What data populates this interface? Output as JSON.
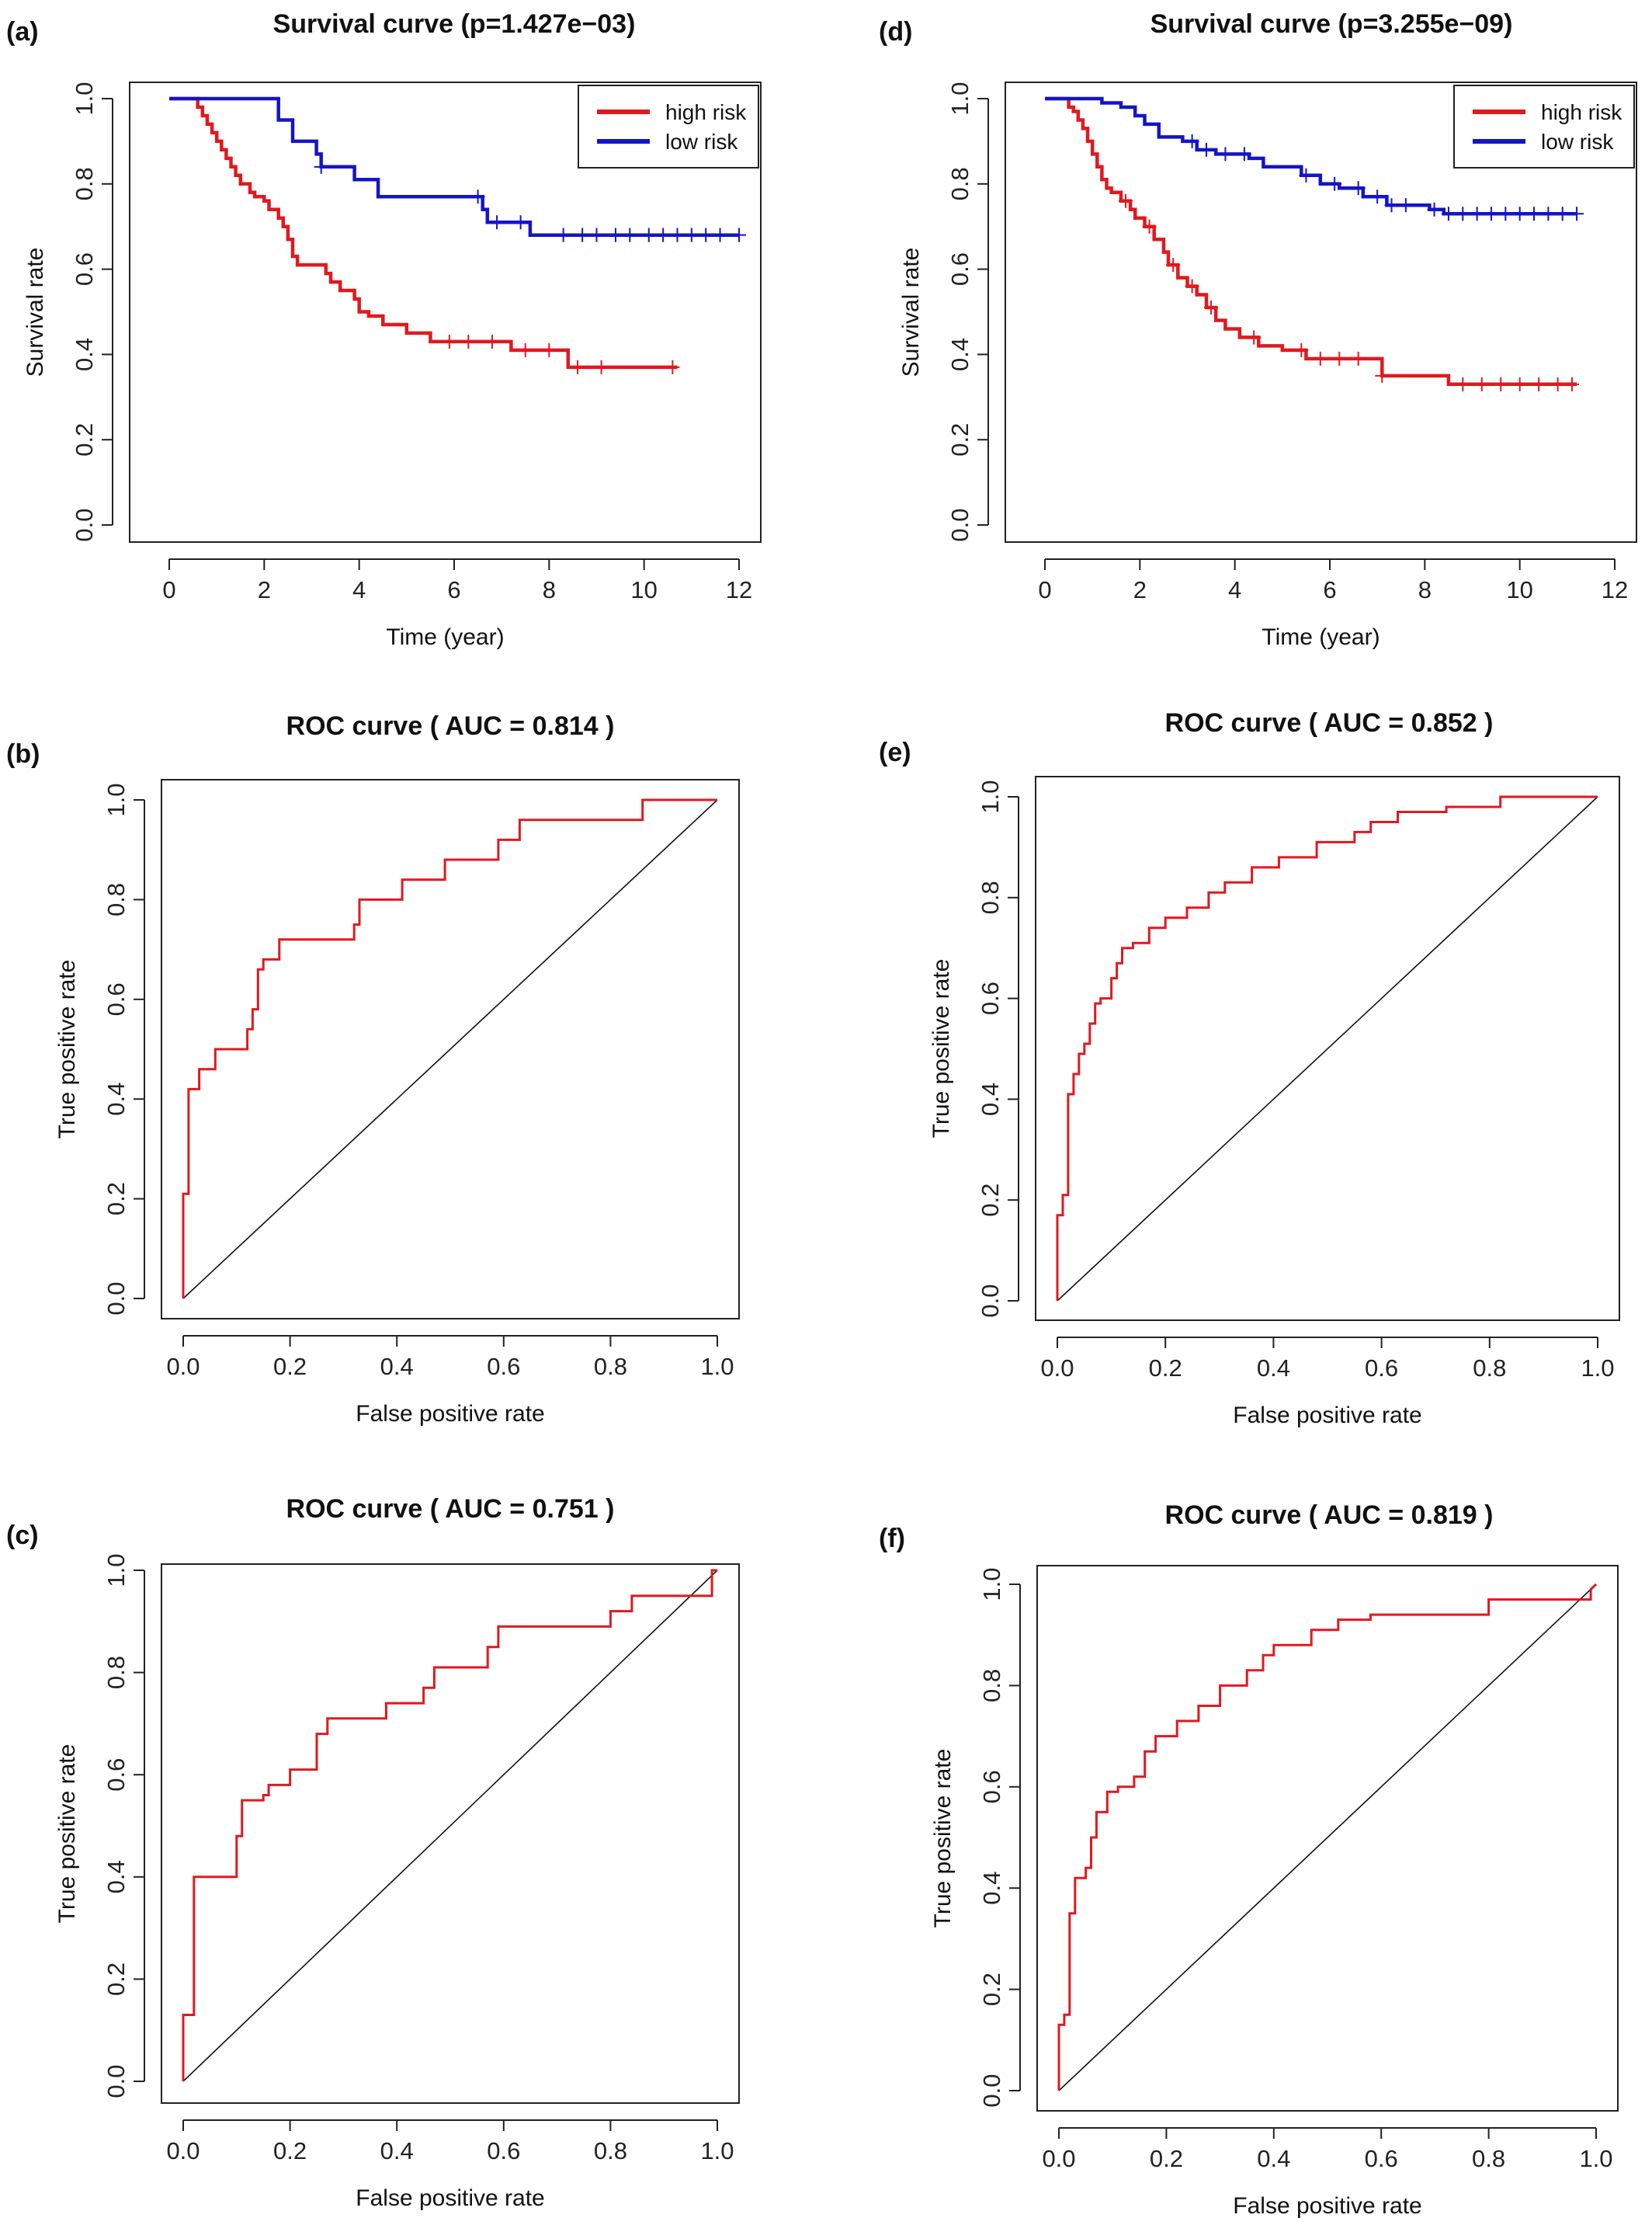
{
  "colors": {
    "high_risk": "#e0191f",
    "low_risk": "#1414c8",
    "axis": "#222222",
    "diagonal": "#111111"
  },
  "chart_data": [
    {
      "panel": "(a)",
      "type": "line",
      "title": "Survival curve (p=1.427e−03)",
      "xlabel": "Time (year)",
      "ylabel": "Survival rate",
      "xlim": [
        0,
        12
      ],
      "ylim": [
        0,
        1
      ],
      "x_ticks": [
        "0",
        "2",
        "4",
        "6",
        "8",
        "10",
        "12"
      ],
      "y_ticks": [
        "0.0",
        "0.2",
        "0.4",
        "0.6",
        "0.8",
        "1.0"
      ],
      "step": true,
      "legend": {
        "position": "top-right"
      },
      "series": [
        {
          "name": "high risk",
          "color": "#e0191f",
          "x": [
            0,
            0.6,
            0.7,
            0.8,
            0.9,
            1.0,
            1.1,
            1.2,
            1.3,
            1.4,
            1.5,
            1.7,
            1.8,
            2.0,
            2.1,
            2.3,
            2.4,
            2.5,
            2.6,
            2.7,
            3.3,
            3.4,
            3.6,
            3.9,
            4.0,
            4.2,
            4.5,
            5.0,
            5.5,
            7.2,
            8.4,
            10.7
          ],
          "y": [
            1.0,
            0.98,
            0.96,
            0.94,
            0.92,
            0.9,
            0.88,
            0.86,
            0.84,
            0.82,
            0.8,
            0.78,
            0.77,
            0.76,
            0.74,
            0.72,
            0.7,
            0.67,
            0.63,
            0.61,
            0.59,
            0.57,
            0.55,
            0.53,
            0.5,
            0.49,
            0.47,
            0.45,
            0.43,
            0.41,
            0.37,
            0.37
          ],
          "censored_x": [
            5.9,
            6.3,
            6.8,
            7.5,
            8.0,
            8.6,
            9.1,
            10.6
          ]
        },
        {
          "name": "low risk",
          "color": "#1414c8",
          "x": [
            0,
            2.3,
            2.6,
            3.1,
            3.2,
            3.9,
            4.4,
            6.6,
            6.7,
            7.0,
            7.6,
            12.0
          ],
          "y": [
            1.0,
            0.95,
            0.9,
            0.87,
            0.84,
            0.81,
            0.77,
            0.74,
            0.71,
            0.71,
            0.68,
            0.68
          ],
          "censored_x": [
            3.2,
            6.5,
            6.9,
            7.4,
            8.3,
            8.7,
            9.0,
            9.4,
            9.7,
            10.1,
            10.4,
            10.7,
            11.0,
            11.3,
            11.6,
            12.0
          ]
        }
      ]
    },
    {
      "panel": "(b)",
      "type": "line",
      "title": "ROC curve ( AUC =  0.814 )",
      "xlabel": "False positive rate",
      "ylabel": "True positive rate",
      "xlim": [
        0,
        1
      ],
      "ylim": [
        0,
        1
      ],
      "x_ticks": [
        "0.0",
        "0.2",
        "0.4",
        "0.6",
        "0.8",
        "1.0"
      ],
      "y_ticks": [
        "0.0",
        "0.2",
        "0.4",
        "0.6",
        "0.8",
        "1.0"
      ],
      "step": true,
      "series": [
        {
          "color": "#e0191f",
          "x": [
            0,
            0,
            0.01,
            0.01,
            0.03,
            0.03,
            0.06,
            0.06,
            0.12,
            0.12,
            0.13,
            0.13,
            0.14,
            0.14,
            0.15,
            0.15,
            0.18,
            0.18,
            0.32,
            0.32,
            0.33,
            0.33,
            0.41,
            0.41,
            0.49,
            0.49,
            0.59,
            0.59,
            0.63,
            0.63,
            0.86,
            0.86,
            1.0
          ],
          "y": [
            0,
            0.21,
            0.21,
            0.42,
            0.42,
            0.46,
            0.46,
            0.5,
            0.5,
            0.54,
            0.54,
            0.58,
            0.58,
            0.66,
            0.66,
            0.68,
            0.68,
            0.72,
            0.72,
            0.75,
            0.75,
            0.8,
            0.8,
            0.84,
            0.84,
            0.88,
            0.88,
            0.92,
            0.92,
            0.96,
            0.96,
            1.0,
            1.0
          ]
        }
      ]
    },
    {
      "panel": "(c)",
      "type": "line",
      "title": "ROC curve ( AUC =  0.751 )",
      "xlabel": "False positive rate",
      "ylabel": "True positive rate",
      "xlim": [
        0,
        1
      ],
      "ylim": [
        0,
        1
      ],
      "x_ticks": [
        "0.0",
        "0.2",
        "0.4",
        "0.6",
        "0.8",
        "1.0"
      ],
      "y_ticks": [
        "0.0",
        "0.2",
        "0.4",
        "0.6",
        "0.8",
        "1.0"
      ],
      "step": true,
      "series": [
        {
          "color": "#e0191f",
          "x": [
            0,
            0,
            0.02,
            0.02,
            0.1,
            0.1,
            0.11,
            0.11,
            0.15,
            0.15,
            0.16,
            0.16,
            0.2,
            0.2,
            0.25,
            0.25,
            0.27,
            0.27,
            0.3,
            0.3,
            0.38,
            0.38,
            0.45,
            0.45,
            0.47,
            0.47,
            0.57,
            0.57,
            0.59,
            0.59,
            0.8,
            0.8,
            0.84,
            0.84,
            0.99,
            0.99,
            1.0
          ],
          "y": [
            0,
            0.13,
            0.13,
            0.4,
            0.4,
            0.48,
            0.48,
            0.55,
            0.55,
            0.56,
            0.56,
            0.58,
            0.58,
            0.61,
            0.61,
            0.68,
            0.68,
            0.71,
            0.71,
            0.71,
            0.71,
            0.74,
            0.74,
            0.77,
            0.77,
            0.81,
            0.81,
            0.85,
            0.85,
            0.89,
            0.89,
            0.92,
            0.92,
            0.95,
            0.95,
            1.0,
            1.0
          ]
        }
      ]
    },
    {
      "panel": "(d)",
      "type": "line",
      "title": "Survival curve (p=3.255e−09)",
      "xlabel": "Time (year)",
      "ylabel": "Survival rate",
      "xlim": [
        0,
        12
      ],
      "ylim": [
        0,
        1
      ],
      "x_ticks": [
        "0",
        "2",
        "4",
        "6",
        "8",
        "10",
        "12"
      ],
      "y_ticks": [
        "0.0",
        "0.2",
        "0.4",
        "0.6",
        "0.8",
        "1.0"
      ],
      "step": true,
      "legend": {
        "position": "top-right"
      },
      "series": [
        {
          "name": "high risk",
          "color": "#e0191f",
          "x": [
            0,
            0.5,
            0.6,
            0.7,
            0.8,
            0.9,
            1.0,
            1.1,
            1.2,
            1.3,
            1.4,
            1.6,
            1.8,
            1.9,
            2.1,
            2.3,
            2.5,
            2.6,
            2.8,
            3.0,
            3.2,
            3.4,
            3.6,
            3.8,
            4.1,
            4.5,
            5.0,
            5.5,
            7.1,
            8.5,
            11.2
          ],
          "y": [
            1.0,
            0.98,
            0.97,
            0.95,
            0.93,
            0.9,
            0.87,
            0.84,
            0.81,
            0.79,
            0.78,
            0.76,
            0.74,
            0.72,
            0.7,
            0.67,
            0.64,
            0.61,
            0.58,
            0.56,
            0.54,
            0.51,
            0.48,
            0.46,
            0.44,
            0.42,
            0.41,
            0.39,
            0.35,
            0.33,
            0.33
          ],
          "censored_x": [
            1.7,
            2.2,
            2.7,
            3.1,
            3.5,
            4.4,
            5.4,
            5.8,
            6.2,
            6.6,
            7.1,
            8.8,
            9.2,
            9.6,
            10.0,
            10.4,
            10.8,
            11.1
          ]
        },
        {
          "name": "low risk",
          "color": "#1414c8",
          "x": [
            0,
            1.2,
            1.6,
            1.9,
            2.1,
            2.4,
            2.9,
            3.2,
            3.6,
            4.3,
            4.6,
            5.4,
            5.8,
            6.2,
            6.7,
            7.2,
            8.1,
            8.4,
            11.2
          ],
          "y": [
            1.0,
            0.99,
            0.98,
            0.96,
            0.94,
            0.91,
            0.9,
            0.88,
            0.87,
            0.86,
            0.84,
            0.82,
            0.8,
            0.79,
            0.77,
            0.75,
            0.74,
            0.73,
            0.73
          ],
          "censored_x": [
            3.1,
            3.4,
            3.8,
            4.2,
            5.5,
            6.1,
            6.6,
            7.0,
            7.3,
            7.6,
            8.2,
            8.5,
            8.8,
            9.1,
            9.4,
            9.7,
            10.0,
            10.3,
            10.6,
            10.9,
            11.2
          ]
        }
      ]
    },
    {
      "panel": "(e)",
      "type": "line",
      "title": "ROC curve ( AUC =  0.852 )",
      "xlabel": "False positive rate",
      "ylabel": "True positive rate",
      "xlim": [
        0,
        1
      ],
      "ylim": [
        0,
        1
      ],
      "x_ticks": [
        "0.0",
        "0.2",
        "0.4",
        "0.6",
        "0.8",
        "1.0"
      ],
      "y_ticks": [
        "0.0",
        "0.2",
        "0.4",
        "0.6",
        "0.8",
        "1.0"
      ],
      "step": true,
      "series": [
        {
          "color": "#e0191f",
          "x": [
            0,
            0,
            0.01,
            0.01,
            0.02,
            0.02,
            0.03,
            0.03,
            0.04,
            0.04,
            0.05,
            0.05,
            0.06,
            0.06,
            0.07,
            0.07,
            0.08,
            0.08,
            0.1,
            0.1,
            0.11,
            0.11,
            0.12,
            0.12,
            0.14,
            0.14,
            0.17,
            0.17,
            0.2,
            0.2,
            0.24,
            0.24,
            0.28,
            0.28,
            0.31,
            0.31,
            0.36,
            0.36,
            0.41,
            0.41,
            0.48,
            0.48,
            0.55,
            0.55,
            0.58,
            0.58,
            0.63,
            0.63,
            0.72,
            0.72,
            0.82,
            0.82,
            1.0
          ],
          "y": [
            0,
            0.17,
            0.17,
            0.21,
            0.21,
            0.41,
            0.41,
            0.45,
            0.45,
            0.49,
            0.49,
            0.51,
            0.51,
            0.55,
            0.55,
            0.59,
            0.59,
            0.6,
            0.6,
            0.64,
            0.64,
            0.67,
            0.67,
            0.7,
            0.7,
            0.71,
            0.71,
            0.74,
            0.74,
            0.76,
            0.76,
            0.78,
            0.78,
            0.81,
            0.81,
            0.83,
            0.83,
            0.86,
            0.86,
            0.88,
            0.88,
            0.91,
            0.91,
            0.93,
            0.93,
            0.95,
            0.95,
            0.97,
            0.97,
            0.98,
            0.98,
            1.0,
            1.0
          ]
        }
      ]
    },
    {
      "panel": "(f)",
      "type": "line",
      "title": "ROC curve ( AUC =  0.819 )",
      "xlabel": "False positive rate",
      "ylabel": "True positive rate",
      "xlim": [
        0,
        1
      ],
      "ylim": [
        0,
        1
      ],
      "x_ticks": [
        "0.0",
        "0.2",
        "0.4",
        "0.6",
        "0.8",
        "1.0"
      ],
      "y_ticks": [
        "0.0",
        "0.2",
        "0.4",
        "0.6",
        "0.8",
        "1.0"
      ],
      "step": true,
      "series": [
        {
          "color": "#e0191f",
          "x": [
            0,
            0,
            0.01,
            0.01,
            0.02,
            0.02,
            0.03,
            0.03,
            0.05,
            0.05,
            0.06,
            0.06,
            0.07,
            0.07,
            0.09,
            0.09,
            0.11,
            0.11,
            0.14,
            0.14,
            0.16,
            0.16,
            0.18,
            0.18,
            0.22,
            0.22,
            0.26,
            0.26,
            0.3,
            0.3,
            0.35,
            0.35,
            0.38,
            0.38,
            0.4,
            0.4,
            0.47,
            0.47,
            0.52,
            0.52,
            0.58,
            0.58,
            0.8,
            0.8,
            0.99,
            0.99,
            1.0
          ],
          "y": [
            0,
            0.13,
            0.13,
            0.15,
            0.15,
            0.35,
            0.35,
            0.42,
            0.42,
            0.44,
            0.44,
            0.5,
            0.5,
            0.55,
            0.55,
            0.59,
            0.59,
            0.6,
            0.6,
            0.62,
            0.62,
            0.67,
            0.67,
            0.7,
            0.7,
            0.73,
            0.73,
            0.76,
            0.76,
            0.8,
            0.8,
            0.83,
            0.83,
            0.86,
            0.86,
            0.88,
            0.88,
            0.91,
            0.91,
            0.93,
            0.93,
            0.94,
            0.94,
            0.97,
            0.97,
            0.99,
            1.0
          ]
        }
      ]
    }
  ]
}
